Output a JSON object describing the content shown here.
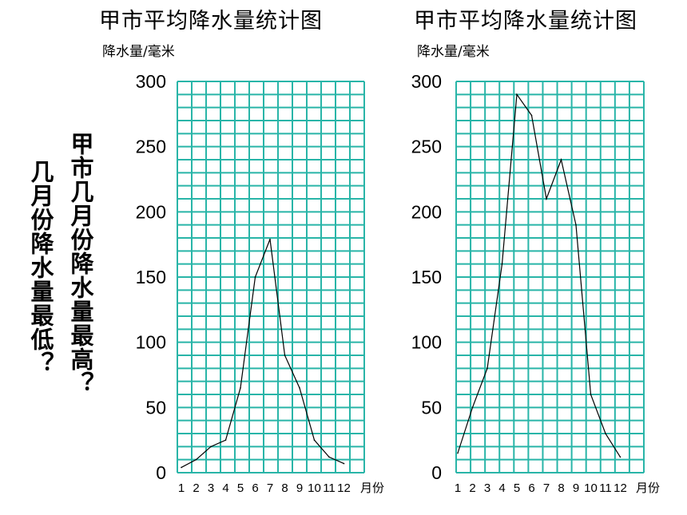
{
  "question_low": "几月份降水量最低？",
  "question_high": "甲市几月份降水量最高？",
  "gridColor": "#29b5a8",
  "lineColor": "#000000",
  "chart_data": [
    {
      "type": "line",
      "title": "甲市平均降水量统计图",
      "ylabel": "降水量/毫米",
      "xlabel": "月份",
      "categories": [
        "1",
        "2",
        "3",
        "4",
        "5",
        "6",
        "7",
        "8",
        "9",
        "10",
        "11",
        "12"
      ],
      "values": [
        4,
        10,
        20,
        25,
        65,
        150,
        179,
        90,
        65,
        25,
        12,
        7
      ],
      "ylim": [
        0,
        300
      ],
      "yticks": [
        0,
        50,
        100,
        150,
        200,
        250,
        300
      ],
      "grid": true
    },
    {
      "type": "line",
      "title": "甲市平均降水量统计图",
      "ylabel": "降水量/毫米",
      "xlabel": "月份",
      "categories": [
        "1",
        "2",
        "3",
        "4",
        "5",
        "6",
        "7",
        "8",
        "9",
        "10",
        "11",
        "12"
      ],
      "values": [
        15,
        50,
        80,
        160,
        290,
        274,
        210,
        240,
        190,
        60,
        30,
        12
      ],
      "ylim": [
        0,
        300
      ],
      "yticks": [
        0,
        50,
        100,
        150,
        200,
        250,
        300
      ],
      "grid": true
    }
  ]
}
